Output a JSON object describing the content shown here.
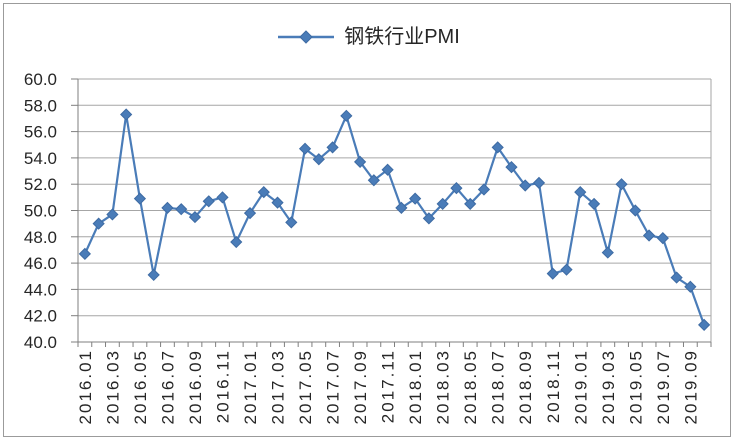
{
  "chart_data": {
    "type": "line",
    "title": "",
    "legend_label": "钢铁行业PMI",
    "legend_position": "top-center",
    "grid": "horizontal",
    "categories": [
      "2016.01",
      "2016.02",
      "2016.03",
      "2016.04",
      "2016.05",
      "2016.06",
      "2016.07",
      "2016.08",
      "2016.09",
      "2016.10",
      "2016.11",
      "2016.12",
      "2017.01",
      "2017.02",
      "2017.03",
      "2017.04",
      "2017.05",
      "2017.06",
      "2017.07",
      "2017.08",
      "2017.09",
      "2017.10",
      "2017.11",
      "2017.12",
      "2018.01",
      "2018.02",
      "2018.03",
      "2018.04",
      "2018.05",
      "2018.06",
      "2018.07",
      "2018.08",
      "2018.09",
      "2018.10",
      "2018.11",
      "2018.12",
      "2019.01",
      "2019.02",
      "2019.03",
      "2019.04",
      "2019.05",
      "2019.06",
      "2019.07",
      "2019.08",
      "2019.09",
      "2019.10"
    ],
    "values": [
      46.7,
      49.0,
      49.7,
      57.3,
      50.9,
      45.1,
      50.2,
      50.1,
      49.5,
      50.7,
      51.0,
      47.6,
      49.8,
      51.4,
      50.6,
      49.1,
      54.7,
      53.9,
      54.8,
      57.2,
      53.7,
      52.3,
      53.1,
      50.2,
      50.9,
      49.4,
      50.5,
      51.7,
      50.5,
      51.6,
      54.8,
      53.3,
      51.9,
      52.1,
      45.2,
      45.5,
      51.4,
      50.5,
      46.8,
      52.0,
      50.0,
      48.1,
      47.9,
      44.9,
      44.2,
      41.3
    ],
    "x_label_every": 2,
    "xlabel": "",
    "ylabel": "",
    "ylim": [
      40,
      60
    ],
    "ytick_step": 2,
    "ytick_labels": [
      "60.0",
      "58.0",
      "56.0",
      "54.0",
      "52.0",
      "50.0",
      "48.0",
      "46.0",
      "44.0",
      "42.0",
      "40.0"
    ],
    "colors": {
      "series": "#4a7cb8",
      "marker_edge": "#3e6ba3",
      "gridline": "#a6a6a6",
      "axis": "#7f7f7f",
      "border": "#9b9b9b",
      "text": "#262626",
      "background": "#ffffff"
    }
  }
}
